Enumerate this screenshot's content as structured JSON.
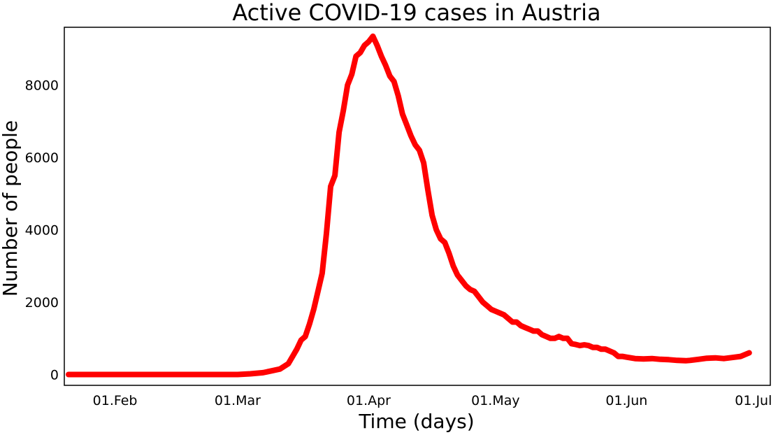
{
  "chart_data": {
    "type": "line",
    "title": "Active COVID-19 cases in Austria",
    "xlabel": "Time (days)",
    "ylabel": "Number of people",
    "x_ticks": [
      "01.Feb",
      "01.Mar",
      "01.Apr",
      "01.May",
      "01.Jun",
      "01.Jul"
    ],
    "y_ticks": [
      "0",
      "2000",
      "4000",
      "6000",
      "8000"
    ],
    "y_tick_values": [
      0,
      2000,
      4000,
      6000,
      8000
    ],
    "xlim": [
      "2020-01-20",
      "2020-07-05"
    ],
    "ylim": [
      -300,
      9600
    ],
    "grid": false,
    "legend": "none",
    "series": [
      {
        "color": "#ff0000",
        "x": [
          "2020-01-21",
          "2020-01-25",
          "2020-01-30",
          "2020-02-05",
          "2020-02-10",
          "2020-02-15",
          "2020-02-20",
          "2020-02-25",
          "2020-03-01",
          "2020-03-04",
          "2020-03-07",
          "2020-03-09",
          "2020-03-11",
          "2020-03-13",
          "2020-03-14",
          "2020-03-15",
          "2020-03-16",
          "2020-03-17",
          "2020-03-18",
          "2020-03-19",
          "2020-03-20",
          "2020-03-21",
          "2020-03-22",
          "2020-03-23",
          "2020-03-24",
          "2020-03-25",
          "2020-03-26",
          "2020-03-27",
          "2020-03-28",
          "2020-03-29",
          "2020-03-30",
          "2020-03-31",
          "2020-04-01",
          "2020-04-02",
          "2020-04-03",
          "2020-04-04",
          "2020-04-05",
          "2020-04-06",
          "2020-04-07",
          "2020-04-08",
          "2020-04-09",
          "2020-04-10",
          "2020-04-11",
          "2020-04-12",
          "2020-04-13",
          "2020-04-14",
          "2020-04-15",
          "2020-04-16",
          "2020-04-17",
          "2020-04-18",
          "2020-04-19",
          "2020-04-20",
          "2020-04-21",
          "2020-04-22",
          "2020-04-23",
          "2020-04-24",
          "2020-04-25",
          "2020-04-26",
          "2020-04-27",
          "2020-04-28",
          "2020-04-29",
          "2020-04-30",
          "2020-05-01",
          "2020-05-02",
          "2020-05-03",
          "2020-05-04",
          "2020-05-05",
          "2020-05-06",
          "2020-05-07",
          "2020-05-08",
          "2020-05-09",
          "2020-05-10",
          "2020-05-11",
          "2020-05-12",
          "2020-05-13",
          "2020-05-14",
          "2020-05-15",
          "2020-05-16",
          "2020-05-17",
          "2020-05-18",
          "2020-05-19",
          "2020-05-20",
          "2020-05-21",
          "2020-05-22",
          "2020-05-23",
          "2020-05-24",
          "2020-05-25",
          "2020-05-26",
          "2020-05-27",
          "2020-05-28",
          "2020-05-29",
          "2020-05-30",
          "2020-05-31",
          "2020-06-01",
          "2020-06-03",
          "2020-06-05",
          "2020-06-07",
          "2020-06-09",
          "2020-06-11",
          "2020-06-13",
          "2020-06-15",
          "2020-06-16",
          "2020-06-18",
          "2020-06-20",
          "2020-06-22",
          "2020-06-24",
          "2020-06-26",
          "2020-06-28",
          "2020-06-30"
        ],
        "y": [
          0,
          0,
          0,
          0,
          0,
          0,
          0,
          0,
          0,
          20,
          50,
          100,
          150,
          300,
          500,
          700,
          950,
          1050,
          1400,
          1800,
          2300,
          2800,
          3900,
          5200,
          5500,
          6700,
          7300,
          8000,
          8300,
          8800,
          8900,
          9100,
          9200,
          9350,
          9100,
          8800,
          8550,
          8250,
          8100,
          7700,
          7200,
          6900,
          6600,
          6350,
          6200,
          5850,
          5100,
          4400,
          4000,
          3750,
          3650,
          3350,
          3000,
          2750,
          2600,
          2450,
          2350,
          2300,
          2150,
          2000,
          1900,
          1800,
          1750,
          1700,
          1650,
          1550,
          1450,
          1450,
          1350,
          1300,
          1250,
          1200,
          1200,
          1100,
          1050,
          1000,
          1000,
          1050,
          1000,
          1000,
          850,
          830,
          800,
          820,
          800,
          750,
          750,
          700,
          700,
          650,
          600,
          500,
          500,
          480,
          440,
          430,
          440,
          420,
          410,
          390,
          380,
          390,
          420,
          450,
          460,
          440,
          470,
          500,
          600
        ]
      }
    ]
  }
}
